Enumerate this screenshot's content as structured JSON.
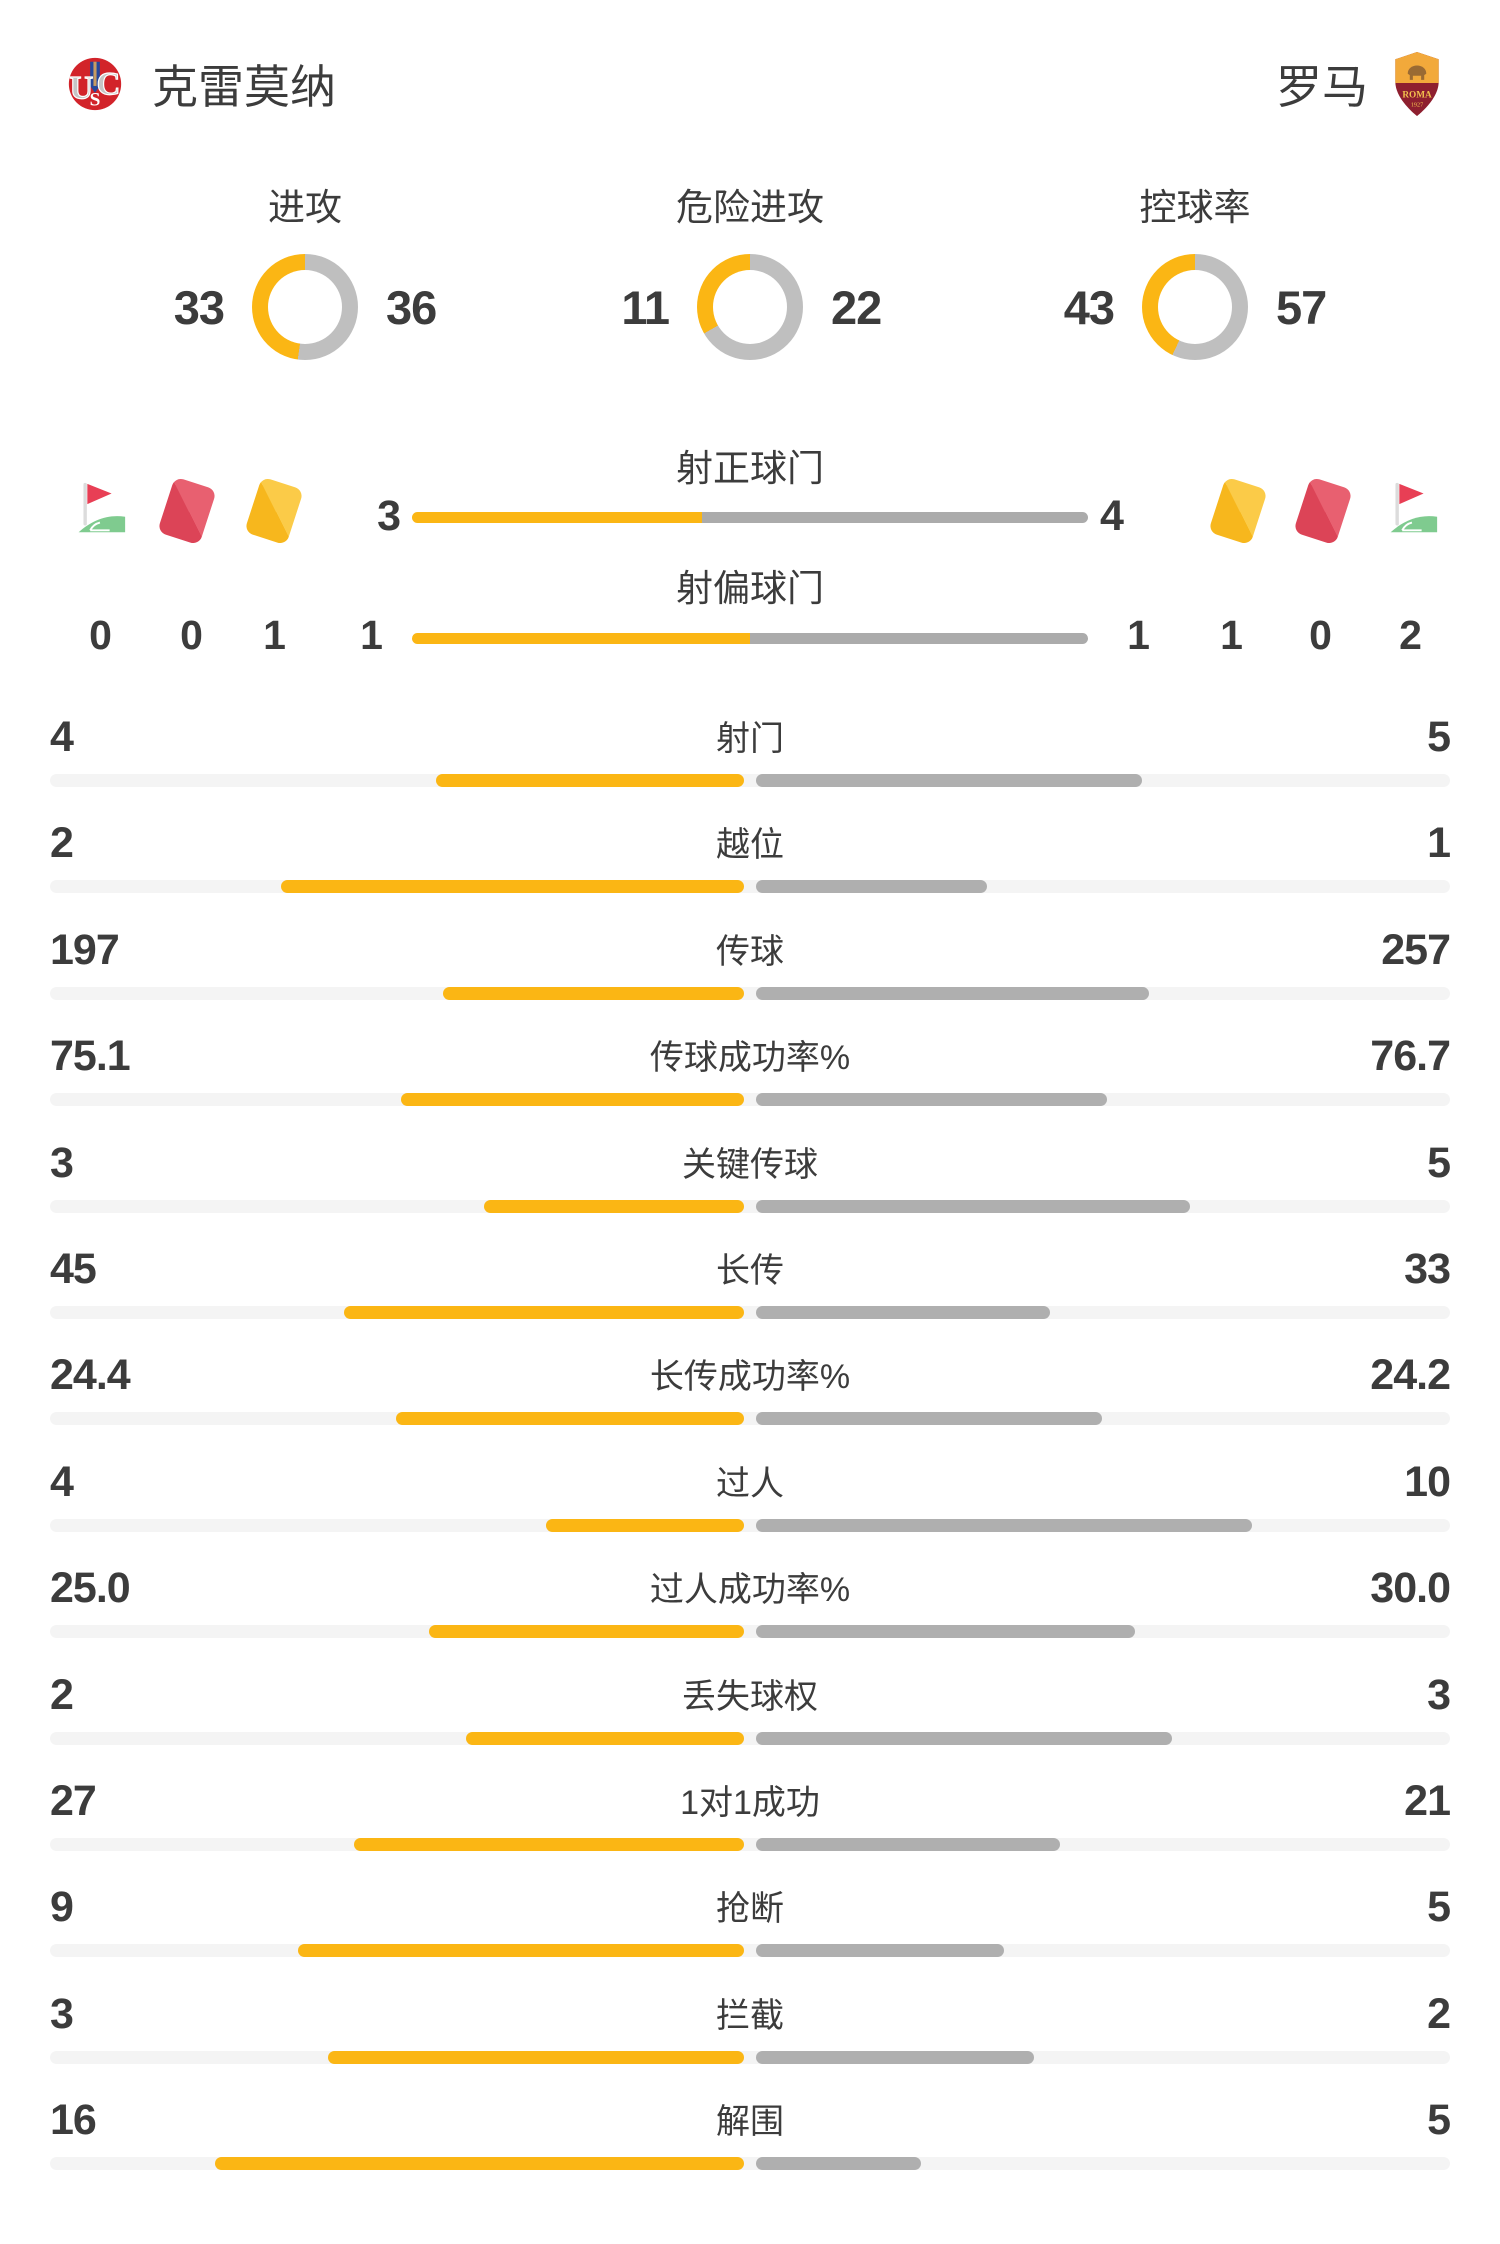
{
  "header": {
    "home_team": "克雷莫纳",
    "away_team": "罗马"
  },
  "donut_charts": [
    {
      "label": "进攻",
      "home": "33",
      "away": "36"
    },
    {
      "label": "危险进攻",
      "home": "11",
      "away": "22"
    },
    {
      "label": "控球率",
      "home": "43",
      "away": "57"
    }
  ],
  "shot_rows": [
    {
      "label": "射正球门",
      "home": "3",
      "away": "4"
    },
    {
      "label": "射偏球门",
      "home": "1",
      "away": "1"
    }
  ],
  "cards": {
    "home": {
      "corner": "0",
      "red": "0",
      "yellow": "1"
    },
    "away": {
      "yellow": "1",
      "red": "0",
      "corner": "2"
    }
  },
  "stat_rows": [
    {
      "label": "射门",
      "home": "4",
      "away": "5"
    },
    {
      "label": "越位",
      "home": "2",
      "away": "1"
    },
    {
      "label": "传球",
      "home": "197",
      "away": "257"
    },
    {
      "label": "传球成功率%",
      "home": "75.1",
      "away": "76.7"
    },
    {
      "label": "关键传球",
      "home": "3",
      "away": "5"
    },
    {
      "label": "长传",
      "home": "45",
      "away": "33"
    },
    {
      "label": "长传成功率%",
      "home": "24.4",
      "away": "24.2"
    },
    {
      "label": "过人",
      "home": "4",
      "away": "10"
    },
    {
      "label": "过人成功率%",
      "home": "25.0",
      "away": "30.0"
    },
    {
      "label": "丢失球权",
      "home": "2",
      "away": "3"
    },
    {
      "label": "1对1成功",
      "home": "27",
      "away": "21"
    },
    {
      "label": "抢断",
      "home": "9",
      "away": "5"
    },
    {
      "label": "拦截",
      "home": "3",
      "away": "2"
    },
    {
      "label": "解围",
      "home": "16",
      "away": "5"
    }
  ],
  "icons": {
    "corner_flag": "corner-flag",
    "red_card": "red-card",
    "yellow_card": "yellow-card",
    "home_logo": "cremonese-crest",
    "away_logo": "roma-crest"
  },
  "colors": {
    "home_accent": "#FBB614",
    "away_accent": "#AFAFAF",
    "donut_away": "#BFBFBF",
    "bar_track": "#F4F4F4",
    "text": "#3C3C3C",
    "red_card": "#DC4457",
    "yellow_card": "#F7B71D",
    "flag_red": "#E83F55",
    "flag_green": "#7FCB8F"
  },
  "chart_data": [
    {
      "type": "pie",
      "title": "进攻",
      "series": [
        {
          "name": "克雷莫纳",
          "value": 33
        },
        {
          "name": "罗马",
          "value": 36
        }
      ],
      "legend_position": "sides",
      "colors": [
        "#FBB614",
        "#BFBFBF"
      ]
    },
    {
      "type": "pie",
      "title": "危险进攻",
      "series": [
        {
          "name": "克雷莫纳",
          "value": 11
        },
        {
          "name": "罗马",
          "value": 22
        }
      ],
      "legend_position": "sides",
      "colors": [
        "#FBB614",
        "#BFBFBF"
      ]
    },
    {
      "type": "pie",
      "title": "控球率",
      "series": [
        {
          "name": "克雷莫纳",
          "value": 43
        },
        {
          "name": "罗马",
          "value": 57
        }
      ],
      "legend_position": "sides",
      "colors": [
        "#FBB614",
        "#BFBFBF"
      ]
    },
    {
      "type": "bar",
      "title": "比赛数据对比",
      "orientation": "horizontal-paired",
      "categories": [
        "射正球门",
        "射偏球门",
        "射门",
        "越位",
        "传球",
        "传球成功率%",
        "关键传球",
        "长传",
        "长传成功率%",
        "过人",
        "过人成功率%",
        "丢失球权",
        "1对1成功",
        "抢断",
        "拦截",
        "解围"
      ],
      "series": [
        {
          "name": "克雷莫纳",
          "values": [
            3,
            1,
            4,
            2,
            197,
            75.1,
            3,
            45,
            24.4,
            4,
            25.0,
            2,
            27,
            9,
            3,
            16
          ]
        },
        {
          "name": "罗马",
          "values": [
            4,
            1,
            5,
            1,
            257,
            76.7,
            5,
            33,
            24.2,
            10,
            30.0,
            3,
            21,
            5,
            2,
            5
          ]
        }
      ],
      "grid": false
    },
    {
      "type": "table",
      "title": "红黄牌与角球",
      "categories": [
        "角球",
        "红牌",
        "黄牌"
      ],
      "series": [
        {
          "name": "克雷莫纳",
          "values": [
            0,
            0,
            1
          ]
        },
        {
          "name": "罗马",
          "values": [
            2,
            0,
            1
          ]
        }
      ]
    }
  ]
}
